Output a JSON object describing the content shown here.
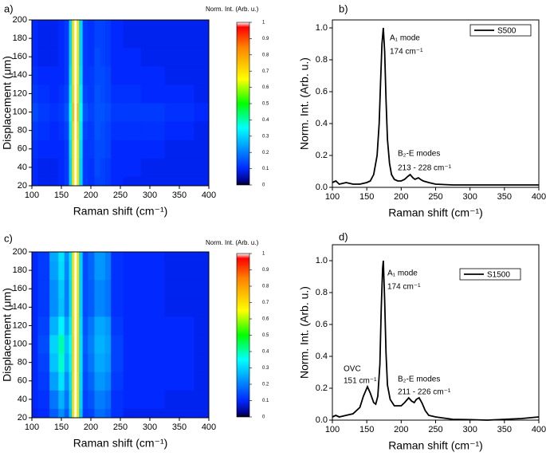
{
  "chart_data": [
    {
      "type": "heatmap",
      "panel_label": "a)",
      "colorbar_title": "Norm. Int. (Arb. u.)",
      "x_label": "Raman shift (cm⁻¹)",
      "y_label": "Displacement (μm)",
      "xlim": [
        100,
        400
      ],
      "xticks": [
        100,
        150,
        200,
        250,
        300,
        350,
        400
      ],
      "ylim": [
        20,
        200
      ],
      "yticks": [
        20,
        40,
        60,
        80,
        100,
        120,
        140,
        160,
        180,
        200
      ],
      "clim": [
        0,
        1
      ],
      "cticks": [
        0,
        0.1,
        0.2,
        0.3,
        0.4,
        0.5,
        0.6,
        0.7,
        0.8,
        0.9,
        1
      ],
      "x": [
        100,
        120,
        140,
        150,
        160,
        166,
        170,
        174,
        178,
        182,
        190,
        200,
        212,
        220,
        228,
        240,
        270,
        300,
        350,
        400
      ],
      "y": [
        20,
        40,
        60,
        80,
        100,
        120,
        140,
        160,
        180,
        200
      ],
      "z": [
        [
          0.1,
          0.09,
          0.09,
          0.1,
          0.12,
          0.3,
          0.7,
          1,
          0.7,
          0.3,
          0.12,
          0.11,
          0.13,
          0.13,
          0.12,
          0.1,
          0.09,
          0.09,
          0.09,
          0.09
        ],
        [
          0.1,
          0.09,
          0.09,
          0.1,
          0.12,
          0.3,
          0.7,
          1,
          0.7,
          0.3,
          0.12,
          0.11,
          0.14,
          0.13,
          0.12,
          0.1,
          0.1,
          0.09,
          0.09,
          0.09
        ],
        [
          0.11,
          0.1,
          0.1,
          0.1,
          0.12,
          0.31,
          0.7,
          1,
          0.7,
          0.31,
          0.12,
          0.12,
          0.14,
          0.14,
          0.13,
          0.1,
          0.1,
          0.1,
          0.09,
          0.09
        ],
        [
          0.12,
          0.11,
          0.1,
          0.11,
          0.13,
          0.33,
          0.72,
          1,
          0.72,
          0.33,
          0.13,
          0.12,
          0.15,
          0.14,
          0.13,
          0.11,
          0.11,
          0.11,
          0.1,
          0.09
        ],
        [
          0.14,
          0.12,
          0.11,
          0.12,
          0.15,
          0.35,
          0.75,
          1,
          0.75,
          0.35,
          0.15,
          0.13,
          0.15,
          0.15,
          0.14,
          0.12,
          0.12,
          0.12,
          0.11,
          0.1
        ],
        [
          0.12,
          0.11,
          0.1,
          0.11,
          0.13,
          0.33,
          0.72,
          1,
          0.72,
          0.33,
          0.13,
          0.12,
          0.15,
          0.14,
          0.13,
          0.11,
          0.11,
          0.1,
          0.1,
          0.09
        ],
        [
          0.11,
          0.1,
          0.1,
          0.1,
          0.12,
          0.31,
          0.7,
          1,
          0.7,
          0.31,
          0.12,
          0.12,
          0.14,
          0.14,
          0.13,
          0.1,
          0.1,
          0.1,
          0.09,
          0.09
        ],
        [
          0.1,
          0.09,
          0.09,
          0.1,
          0.12,
          0.3,
          0.7,
          1,
          0.7,
          0.3,
          0.12,
          0.11,
          0.14,
          0.13,
          0.12,
          0.1,
          0.1,
          0.09,
          0.09,
          0.09
        ],
        [
          0.1,
          0.09,
          0.09,
          0.1,
          0.12,
          0.3,
          0.7,
          1,
          0.7,
          0.3,
          0.12,
          0.11,
          0.13,
          0.13,
          0.12,
          0.1,
          0.09,
          0.09,
          0.09,
          0.09
        ],
        [
          0.1,
          0.09,
          0.09,
          0.1,
          0.12,
          0.3,
          0.7,
          1,
          0.7,
          0.3,
          0.12,
          0.11,
          0.13,
          0.13,
          0.12,
          0.1,
          0.09,
          0.09,
          0.09,
          0.09
        ]
      ]
    },
    {
      "type": "line",
      "panel_label": "b)",
      "x_label": "Raman shift (cm⁻¹)",
      "y_label": "Norm. Int. (Arb. u.)",
      "xlim": [
        100,
        400
      ],
      "xticks": [
        100,
        150,
        200,
        250,
        300,
        350,
        400
      ],
      "ylim": [
        0,
        1.05
      ],
      "yticks": [
        {
          "value": 0,
          "label": "0.0"
        },
        0.2,
        0.4,
        0.6,
        0.8,
        {
          "value": 1,
          "label": "1.0"
        }
      ],
      "legend": "upper right",
      "annotations": [
        "A₁ mode",
        "174 cm⁻¹",
        "B₂-E modes",
        "213 - 228 cm⁻¹"
      ],
      "series": [
        {
          "name": "S500",
          "color": "#000000",
          "x": [
            100,
            105,
            110,
            120,
            130,
            140,
            150,
            155,
            160,
            165,
            168,
            170,
            172,
            174,
            176,
            178,
            180,
            183,
            186,
            190,
            195,
            200,
            205,
            210,
            213,
            217,
            220,
            225,
            228,
            232,
            240,
            250,
            275,
            300,
            350,
            400
          ],
          "values": [
            0.03,
            0.04,
            0.02,
            0.03,
            0.02,
            0.02,
            0.03,
            0.04,
            0.08,
            0.2,
            0.4,
            0.65,
            0.9,
            1.0,
            0.85,
            0.55,
            0.3,
            0.15,
            0.08,
            0.05,
            0.04,
            0.04,
            0.05,
            0.07,
            0.08,
            0.06,
            0.05,
            0.06,
            0.05,
            0.04,
            0.03,
            0.02,
            0.015,
            0.015,
            0.015,
            0.015
          ]
        }
      ]
    },
    {
      "type": "heatmap",
      "panel_label": "c)",
      "colorbar_title": "Norm. Int. (Arb. u.)",
      "x_label": "Raman shift (cm⁻¹)",
      "y_label": "Displacement (μm)",
      "xlim": [
        100,
        400
      ],
      "xticks": [
        100,
        150,
        200,
        250,
        300,
        350,
        400
      ],
      "ylim": [
        20,
        200
      ],
      "yticks": [
        20,
        40,
        60,
        80,
        100,
        120,
        140,
        160,
        180,
        200
      ],
      "clim": [
        0,
        1
      ],
      "cticks": [
        0,
        0.1,
        0.2,
        0.3,
        0.4,
        0.5,
        0.6,
        0.7,
        0.8,
        0.9,
        1
      ],
      "x": [
        100,
        120,
        140,
        150,
        160,
        166,
        170,
        174,
        178,
        182,
        190,
        200,
        212,
        220,
        228,
        240,
        270,
        300,
        350,
        400
      ],
      "y": [
        20,
        40,
        60,
        80,
        100,
        120,
        140,
        160,
        180,
        200
      ],
      "z": [
        [
          0.09,
          0.1,
          0.16,
          0.22,
          0.16,
          0.28,
          0.7,
          1,
          0.7,
          0.28,
          0.12,
          0.13,
          0.18,
          0.18,
          0.16,
          0.11,
          0.09,
          0.09,
          0.09,
          0.09
        ],
        [
          0.1,
          0.11,
          0.19,
          0.26,
          0.19,
          0.3,
          0.7,
          1,
          0.7,
          0.3,
          0.13,
          0.15,
          0.2,
          0.2,
          0.18,
          0.11,
          0.1,
          0.1,
          0.09,
          0.09
        ],
        [
          0.1,
          0.12,
          0.24,
          0.32,
          0.22,
          0.32,
          0.71,
          1,
          0.71,
          0.31,
          0.14,
          0.17,
          0.23,
          0.23,
          0.21,
          0.12,
          0.1,
          0.1,
          0.1,
          0.09
        ],
        [
          0.1,
          0.13,
          0.28,
          0.38,
          0.26,
          0.34,
          0.72,
          1,
          0.72,
          0.32,
          0.15,
          0.19,
          0.25,
          0.25,
          0.23,
          0.13,
          0.1,
          0.1,
          0.1,
          0.09
        ],
        [
          0.1,
          0.14,
          0.3,
          0.4,
          0.28,
          0.35,
          0.72,
          1,
          0.72,
          0.32,
          0.16,
          0.2,
          0.26,
          0.26,
          0.24,
          0.13,
          0.1,
          0.1,
          0.1,
          0.09
        ],
        [
          0.1,
          0.13,
          0.26,
          0.34,
          0.24,
          0.33,
          0.71,
          1,
          0.71,
          0.31,
          0.15,
          0.19,
          0.25,
          0.25,
          0.23,
          0.12,
          0.1,
          0.1,
          0.1,
          0.09
        ],
        [
          0.1,
          0.12,
          0.22,
          0.28,
          0.2,
          0.31,
          0.7,
          1,
          0.7,
          0.3,
          0.14,
          0.16,
          0.21,
          0.21,
          0.19,
          0.11,
          0.1,
          0.1,
          0.09,
          0.09
        ],
        [
          0.1,
          0.12,
          0.22,
          0.29,
          0.2,
          0.31,
          0.7,
          1,
          0.7,
          0.3,
          0.14,
          0.16,
          0.21,
          0.21,
          0.19,
          0.11,
          0.1,
          0.1,
          0.09,
          0.09
        ],
        [
          0.1,
          0.12,
          0.24,
          0.31,
          0.21,
          0.32,
          0.7,
          1,
          0.7,
          0.3,
          0.14,
          0.17,
          0.23,
          0.23,
          0.2,
          0.11,
          0.1,
          0.1,
          0.09,
          0.09
        ],
        [
          0.1,
          0.12,
          0.25,
          0.32,
          0.22,
          0.32,
          0.7,
          1,
          0.7,
          0.3,
          0.14,
          0.17,
          0.23,
          0.23,
          0.2,
          0.11,
          0.1,
          0.1,
          0.09,
          0.09
        ]
      ]
    },
    {
      "type": "line",
      "panel_label": "d)",
      "x_label": "Raman shift (cm⁻¹)",
      "y_label": "Norm. Int. (Arb. u.)",
      "xlim": [
        100,
        400
      ],
      "xticks": [
        100,
        150,
        200,
        250,
        300,
        350,
        400
      ],
      "ylim": [
        0,
        1.1
      ],
      "yticks": [
        {
          "value": 0,
          "label": "0.0"
        },
        0.2,
        0.4,
        0.6,
        0.8,
        {
          "value": 1,
          "label": "1.0"
        }
      ],
      "legend": "upper right",
      "annotations": [
        "A₁ mode",
        "174 cm⁻¹",
        "OVC",
        "151 cm⁻¹",
        "B₂-E modes",
        "211 - 226 cm⁻¹"
      ],
      "series": [
        {
          "name": "S1500",
          "color": "#000000",
          "x": [
            100,
            105,
            110,
            120,
            130,
            140,
            145,
            151,
            155,
            160,
            163,
            166,
            169,
            171,
            173,
            174,
            176,
            178,
            180,
            184,
            190,
            200,
            205,
            211,
            215,
            219,
            222,
            226,
            230,
            235,
            240,
            250,
            275,
            300,
            325,
            350,
            375,
            400
          ],
          "values": [
            0.02,
            0.03,
            0.02,
            0.03,
            0.04,
            0.08,
            0.15,
            0.21,
            0.17,
            0.11,
            0.1,
            0.15,
            0.35,
            0.7,
            0.95,
            1.0,
            0.75,
            0.42,
            0.22,
            0.13,
            0.09,
            0.09,
            0.11,
            0.14,
            0.12,
            0.11,
            0.13,
            0.14,
            0.11,
            0.06,
            0.03,
            0.02,
            0.005,
            0.003,
            0.0,
            0.005,
            0.01,
            0.02
          ]
        }
      ]
    }
  ]
}
